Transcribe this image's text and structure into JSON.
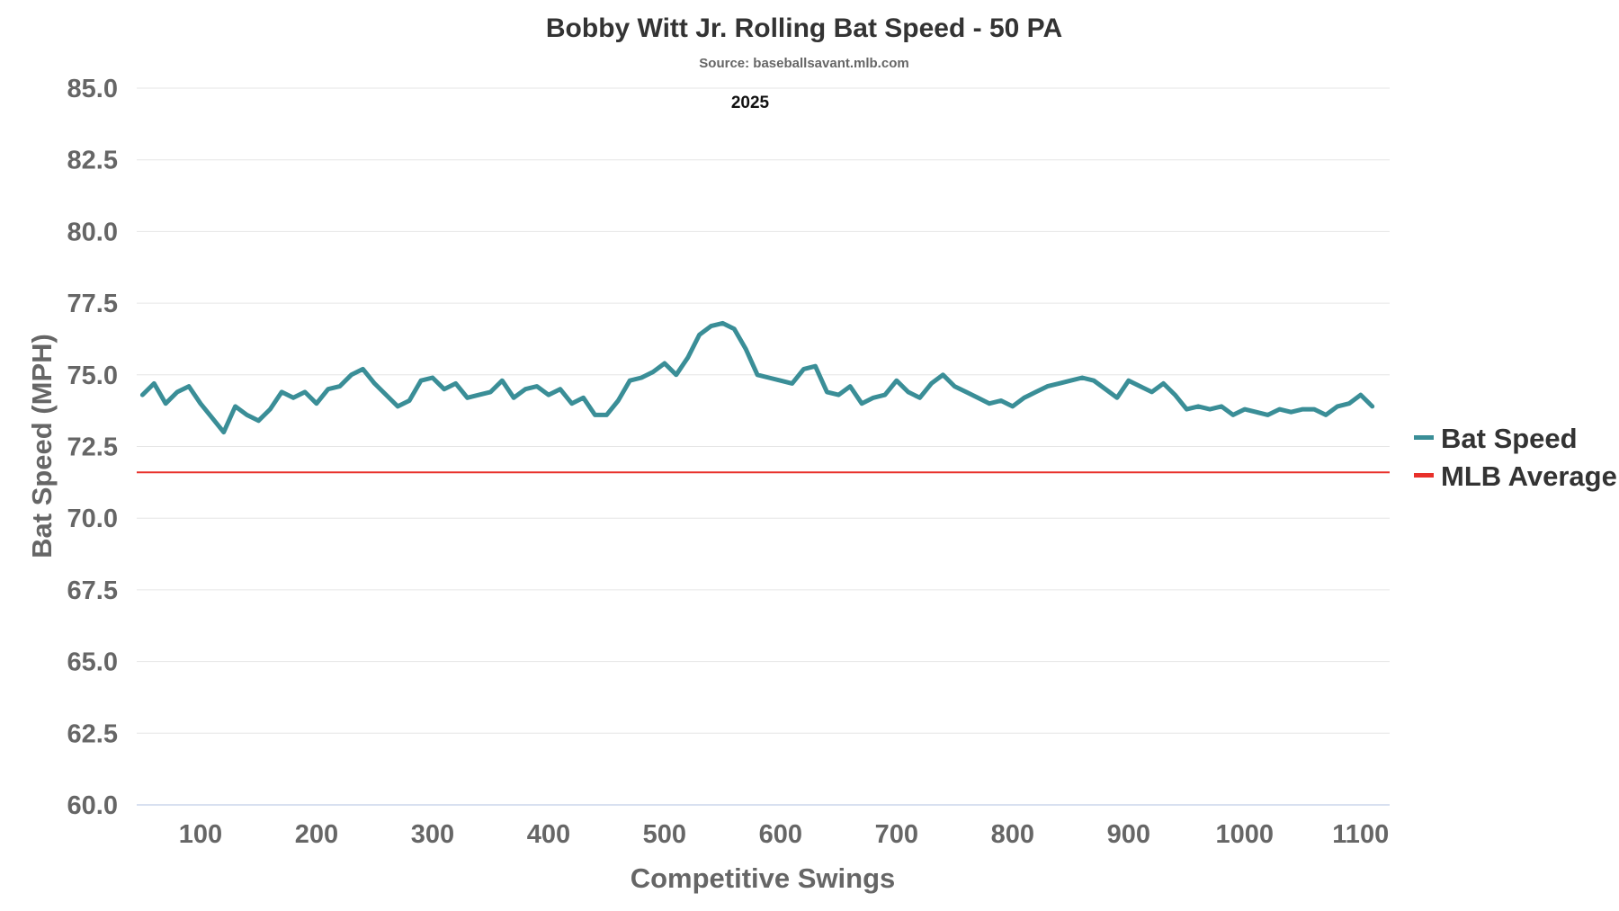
{
  "chart_data": {
    "type": "line",
    "title": "Bobby Witt Jr. Rolling Bat Speed - 50 PA",
    "subtitle": "Source: baseballsavant.mlb.com",
    "annotation": "2025",
    "xlabel": "Competitive Swings",
    "ylabel": "Bat Speed (MPH)",
    "xlim": [
      45,
      1125
    ],
    "ylim": [
      60,
      85
    ],
    "xticks": [
      100,
      200,
      300,
      400,
      500,
      600,
      700,
      800,
      900,
      1000,
      1100
    ],
    "yticks": [
      "60.0",
      "62.5",
      "65.0",
      "67.5",
      "70.0",
      "72.5",
      "75.0",
      "77.5",
      "80.0",
      "82.5",
      "85.0"
    ],
    "grid": true,
    "legend_position": "right",
    "series": [
      {
        "name": "Bat Speed",
        "color": "#3a8e97",
        "x": [
          50,
          60,
          70,
          80,
          90,
          100,
          110,
          120,
          130,
          140,
          150,
          160,
          170,
          180,
          190,
          200,
          210,
          220,
          230,
          240,
          250,
          260,
          270,
          280,
          290,
          300,
          310,
          320,
          330,
          340,
          350,
          360,
          370,
          380,
          390,
          400,
          410,
          420,
          430,
          440,
          450,
          460,
          470,
          480,
          490,
          500,
          510,
          520,
          530,
          540,
          550,
          560,
          570,
          580,
          590,
          600,
          610,
          620,
          630,
          640,
          650,
          660,
          670,
          680,
          690,
          700,
          710,
          720,
          730,
          740,
          750,
          760,
          770,
          780,
          790,
          800,
          810,
          820,
          830,
          840,
          850,
          860,
          870,
          880,
          890,
          900,
          910,
          920,
          930,
          940,
          950,
          960,
          970,
          980,
          990,
          1000,
          1010,
          1020,
          1030,
          1040,
          1050,
          1060,
          1070,
          1080,
          1090,
          1100,
          1110
        ],
        "y": [
          74.3,
          74.7,
          74.0,
          74.4,
          74.6,
          74.0,
          73.5,
          73.0,
          73.9,
          73.6,
          73.4,
          73.8,
          74.4,
          74.2,
          74.4,
          74.0,
          74.5,
          74.6,
          75.0,
          75.2,
          74.7,
          74.3,
          73.9,
          74.1,
          74.8,
          74.9,
          74.5,
          74.7,
          74.2,
          74.3,
          74.4,
          74.8,
          74.2,
          74.5,
          74.6,
          74.3,
          74.5,
          74.0,
          74.2,
          73.6,
          73.6,
          74.1,
          74.8,
          74.9,
          75.1,
          75.4,
          75.0,
          75.6,
          76.4,
          76.7,
          76.8,
          76.6,
          75.9,
          75.0,
          74.9,
          74.8,
          74.7,
          75.2,
          75.3,
          74.4,
          74.3,
          74.6,
          74.0,
          74.2,
          74.3,
          74.8,
          74.4,
          74.2,
          74.7,
          75.0,
          74.6,
          74.4,
          74.2,
          74.0,
          74.1,
          73.9,
          74.2,
          74.4,
          74.6,
          74.7,
          74.8,
          74.9,
          74.8,
          74.5,
          74.2,
          74.8,
          74.6,
          74.4,
          74.7,
          74.3,
          73.8,
          73.9,
          73.8,
          73.9,
          73.6,
          73.8,
          73.7,
          73.6,
          73.8,
          73.7,
          73.8,
          73.8,
          73.6,
          73.9,
          74.0,
          74.3,
          73.9
        ]
      },
      {
        "name": "MLB Average",
        "color": "#e8302a",
        "value": 71.6
      }
    ]
  }
}
